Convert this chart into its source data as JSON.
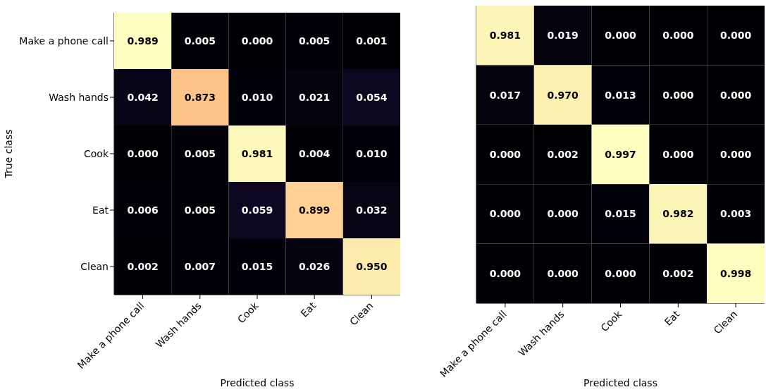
{
  "chart_data": [
    {
      "type": "heatmap",
      "xlabel": "Predicted class",
      "ylabel": "True class",
      "categories": [
        "Make a phone call",
        "Wash hands",
        "Cook",
        "Eat",
        "Clean"
      ],
      "y_categories": [
        "Make a phone call",
        "Wash hands",
        "Cook",
        "Eat",
        "Clean"
      ],
      "data_labels": true,
      "cells": [
        [
          0.989,
          0.005,
          0.0,
          0.005,
          0.001
        ],
        [
          0.042,
          0.873,
          0.01,
          0.021,
          0.054
        ],
        [
          0.0,
          0.005,
          0.981,
          0.004,
          0.01
        ],
        [
          0.006,
          0.005,
          0.059,
          0.899,
          0.032
        ],
        [
          0.002,
          0.007,
          0.015,
          0.026,
          0.95
        ]
      ],
      "cell_labels": [
        [
          "0.989",
          "0.005",
          "0.000",
          "0.005",
          "0.001"
        ],
        [
          "0.042",
          "0.873",
          "0.010",
          "0.021",
          "0.054"
        ],
        [
          "0.000",
          "0.005",
          "0.981",
          "0.004",
          "0.010"
        ],
        [
          "0.006",
          "0.005",
          "0.059",
          "0.899",
          "0.032"
        ],
        [
          "0.002",
          "0.007",
          "0.015",
          "0.026",
          "0.950"
        ]
      ]
    },
    {
      "type": "heatmap",
      "xlabel": "Predicted class",
      "categories": [
        "Make a phone call",
        "Wash hands",
        "Cook",
        "Eat",
        "Clean"
      ],
      "y_categories": [
        null,
        null,
        null,
        null,
        null
      ],
      "tick_labels": "x",
      "data_labels": true,
      "cells": [
        [
          0.981,
          0.019,
          0.0,
          0.0,
          0.0
        ],
        [
          0.017,
          0.97,
          0.013,
          0.0,
          0.0
        ],
        [
          0.0,
          0.002,
          0.997,
          0.0,
          0.0
        ],
        [
          0.0,
          0.0,
          0.015,
          0.982,
          0.003
        ],
        [
          0.0,
          0.0,
          0.0,
          0.002,
          0.998
        ]
      ],
      "cell_labels": [
        [
          "0.981",
          "0.019",
          "0.000",
          "0.000",
          "0.000"
        ],
        [
          "0.017",
          "0.970",
          "0.013",
          "0.000",
          "0.000"
        ],
        [
          "0.000",
          "0.002",
          "0.997",
          "0.000",
          "0.000"
        ],
        [
          "0.000",
          "0.000",
          "0.015",
          "0.982",
          "0.003"
        ],
        [
          "0.000",
          "0.000",
          "0.000",
          "0.002",
          "0.998"
        ]
      ]
    }
  ]
}
